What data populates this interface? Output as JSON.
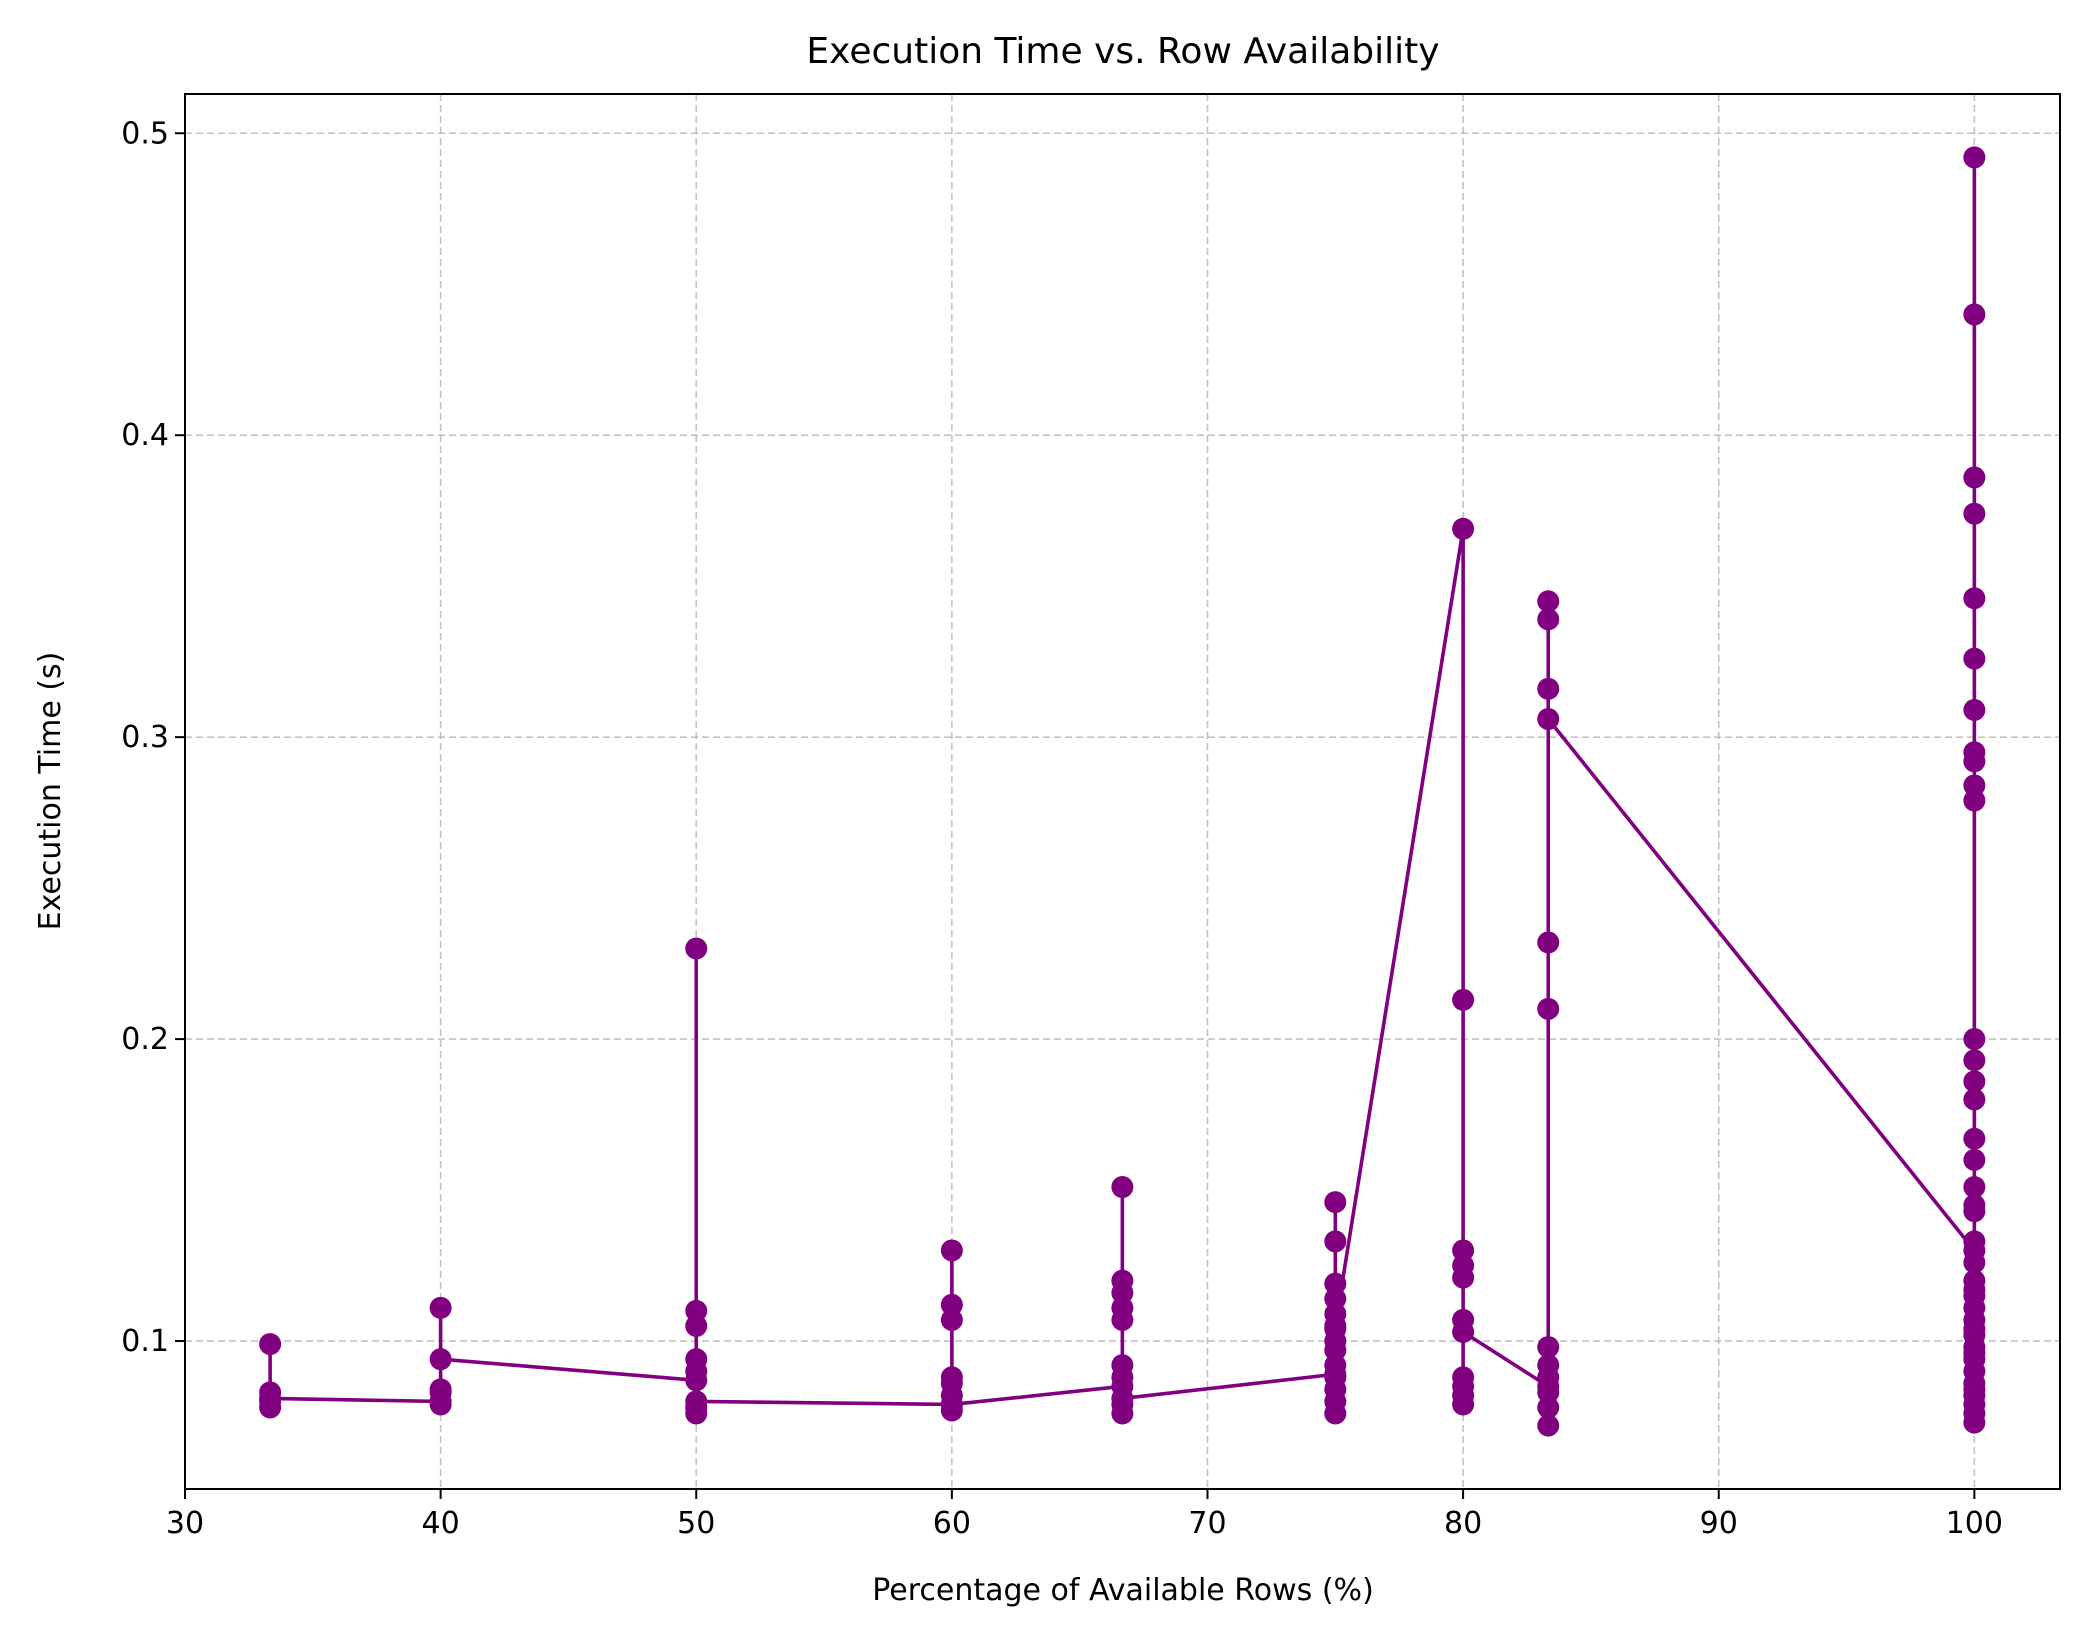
{
  "chart_data": {
    "type": "line",
    "title": "Execution Time vs. Row Availability",
    "xlabel": "Percentage of Available Rows (%)",
    "ylabel": "Execution Time (s)",
    "xlim": [
      30,
      103.35
    ],
    "ylim": [
      0.051,
      0.513
    ],
    "xticks": [
      30,
      40,
      50,
      60,
      70,
      80,
      90,
      100
    ],
    "yticks": [
      0.1,
      0.2,
      0.3,
      0.4,
      0.5
    ],
    "xtick_labels": [
      "30",
      "40",
      "50",
      "60",
      "70",
      "80",
      "90",
      "100"
    ],
    "ytick_labels": [
      "0.1",
      "0.2",
      "0.3",
      "0.4",
      "0.5"
    ],
    "grid": true,
    "marker": "circle",
    "series": [
      {
        "color": "#800080",
        "points": [
          [
            33.33,
            0.099
          ],
          [
            33.33,
            0.083
          ],
          [
            33.33,
            0.08
          ],
          [
            33.33,
            0.078
          ],
          [
            33.33,
            0.081
          ],
          [
            40,
            0.08
          ],
          [
            40,
            0.079
          ],
          [
            40,
            0.083
          ],
          [
            40,
            0.084
          ],
          [
            40,
            0.111
          ],
          [
            40,
            0.094
          ],
          [
            50,
            0.087
          ],
          [
            50,
            0.094
          ],
          [
            50,
            0.09
          ],
          [
            50,
            0.11
          ],
          [
            50,
            0.105
          ],
          [
            50,
            0.23
          ],
          [
            50,
            0.076
          ],
          [
            50,
            0.078
          ],
          [
            50,
            0.08
          ],
          [
            60,
            0.079
          ],
          [
            60,
            0.082
          ],
          [
            60,
            0.086
          ],
          [
            60,
            0.088
          ],
          [
            60,
            0.13
          ],
          [
            60,
            0.112
          ],
          [
            60,
            0.107
          ],
          [
            60,
            0.077
          ],
          [
            60,
            0.079
          ],
          [
            66.67,
            0.085
          ],
          [
            66.67,
            0.088
          ],
          [
            66.67,
            0.092
          ],
          [
            66.67,
            0.12
          ],
          [
            66.67,
            0.116
          ],
          [
            66.67,
            0.111
          ],
          [
            66.67,
            0.107
          ],
          [
            66.67,
            0.151
          ],
          [
            66.67,
            0.076
          ],
          [
            66.67,
            0.079
          ],
          [
            66.67,
            0.081
          ],
          [
            75,
            0.089
          ],
          [
            75,
            0.084
          ],
          [
            75,
            0.08
          ],
          [
            75,
            0.076
          ],
          [
            75,
            0.146
          ],
          [
            75,
            0.133
          ],
          [
            75,
            0.119
          ],
          [
            75,
            0.114
          ],
          [
            75,
            0.109
          ],
          [
            75,
            0.104
          ],
          [
            75,
            0.1
          ],
          [
            75,
            0.097
          ],
          [
            75,
            0.092
          ],
          [
            75,
            0.088
          ],
          [
            75,
            0.105
          ],
          [
            80,
            0.369
          ],
          [
            80,
            0.213
          ],
          [
            80,
            0.13
          ],
          [
            80,
            0.125
          ],
          [
            80,
            0.121
          ],
          [
            80,
            0.107
          ],
          [
            80,
            0.088
          ],
          [
            80,
            0.085
          ],
          [
            80,
            0.082
          ],
          [
            80,
            0.079
          ],
          [
            80,
            0.103
          ],
          [
            83.33,
            0.085
          ],
          [
            83.33,
            0.072
          ],
          [
            83.33,
            0.078
          ],
          [
            83.33,
            0.083
          ],
          [
            83.33,
            0.088
          ],
          [
            83.33,
            0.092
          ],
          [
            83.33,
            0.098
          ],
          [
            83.33,
            0.21
          ],
          [
            83.33,
            0.232
          ],
          [
            83.33,
            0.316
          ],
          [
            83.33,
            0.339
          ],
          [
            83.33,
            0.345
          ],
          [
            83.33,
            0.306
          ],
          [
            100,
            0.13
          ],
          [
            100,
            0.133
          ],
          [
            100,
            0.126
          ],
          [
            100,
            0.12
          ],
          [
            100,
            0.115
          ],
          [
            100,
            0.111
          ],
          [
            100,
            0.107
          ],
          [
            100,
            0.102
          ],
          [
            100,
            0.098
          ],
          [
            100,
            0.094
          ],
          [
            100,
            0.09
          ],
          [
            100,
            0.086
          ],
          [
            100,
            0.082
          ],
          [
            100,
            0.079
          ],
          [
            100,
            0.076
          ],
          [
            100,
            0.073
          ],
          [
            100,
            0.145
          ],
          [
            100,
            0.151
          ],
          [
            100,
            0.16
          ],
          [
            100,
            0.167
          ],
          [
            100,
            0.18
          ],
          [
            100,
            0.186
          ],
          [
            100,
            0.193
          ],
          [
            100,
            0.2
          ],
          [
            100,
            0.279
          ],
          [
            100,
            0.284
          ],
          [
            100,
            0.292
          ],
          [
            100,
            0.295
          ],
          [
            100,
            0.309
          ],
          [
            100,
            0.326
          ],
          [
            100,
            0.346
          ],
          [
            100,
            0.374
          ],
          [
            100,
            0.386
          ],
          [
            100,
            0.44
          ],
          [
            100,
            0.492
          ],
          [
            100,
            0.143
          ],
          [
            100,
            0.117
          ],
          [
            100,
            0.104
          ],
          [
            100,
            0.096
          ],
          [
            100,
            0.084
          ]
        ]
      }
    ]
  }
}
